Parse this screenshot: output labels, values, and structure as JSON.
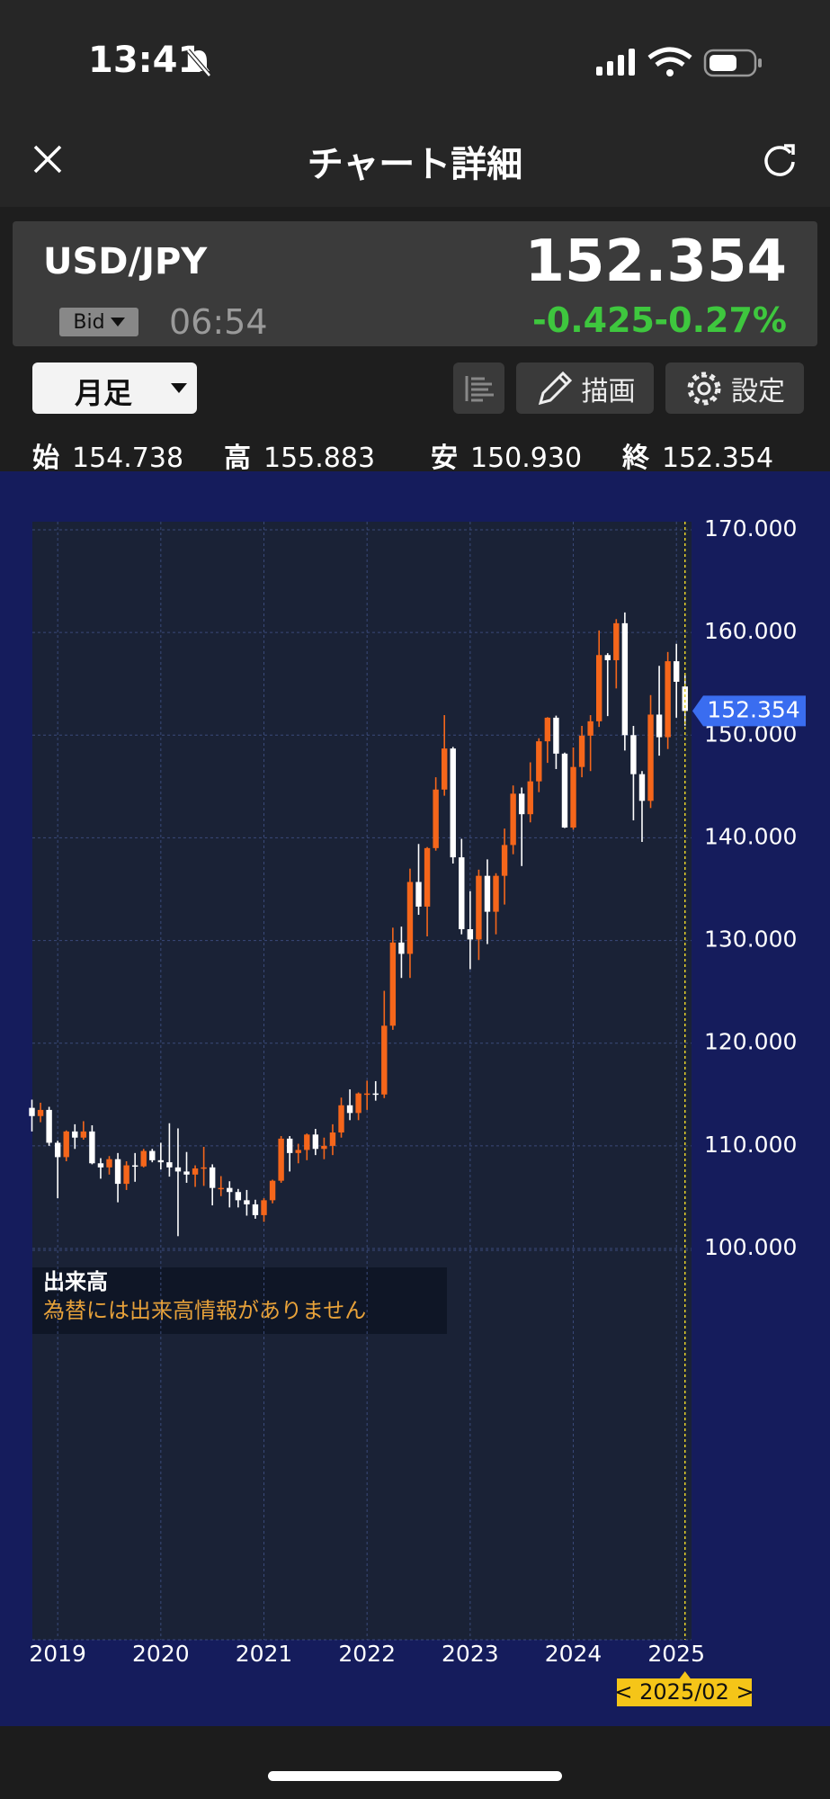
{
  "status_bar": {
    "time": "13:41"
  },
  "header": {
    "title": "チャート詳細"
  },
  "quote": {
    "symbol": "USD/JPY",
    "price": "152.354",
    "side": "Bid",
    "time": "06:54",
    "change": "-0.425",
    "change_pct": "-0.27%"
  },
  "toolbar": {
    "interval": "月足",
    "draw": "描画",
    "settings": "設定"
  },
  "ohlc": [
    {
      "label": "始",
      "value": "154.738"
    },
    {
      "label": "高",
      "value": "155.883"
    },
    {
      "label": "安",
      "value": "150.930"
    },
    {
      "label": "終",
      "value": "152.354"
    }
  ],
  "chart_data": {
    "type": "candlestick",
    "categories": [
      null,
      null,
      null,
      "2019",
      null,
      null,
      null,
      null,
      null,
      null,
      null,
      null,
      null,
      null,
      null,
      "2020",
      null,
      null,
      null,
      null,
      null,
      null,
      null,
      null,
      null,
      null,
      null,
      "2021",
      null,
      null,
      null,
      null,
      null,
      null,
      null,
      null,
      null,
      null,
      null,
      "2022",
      null,
      null,
      null,
      null,
      null,
      null,
      null,
      null,
      null,
      null,
      null,
      "2023",
      null,
      null,
      null,
      null,
      null,
      null,
      null,
      null,
      null,
      null,
      null,
      "2024",
      null,
      null,
      null,
      null,
      null,
      null,
      null,
      null,
      null,
      null,
      null,
      "2025",
      null
    ],
    "open": [
      113.7,
      112.9,
      113.5,
      110.3,
      108.9,
      111.4,
      110.8,
      111.4,
      108.3,
      107.9,
      108.7,
      106.3,
      108.1,
      108.0,
      109.5,
      108.6,
      108.4,
      107.9,
      107.5,
      107.2,
      107.8,
      107.9,
      105.9,
      105.9,
      105.5,
      104.7,
      104.3,
      103.25,
      104.7,
      106.6,
      110.7,
      109.3,
      109.6,
      111.1,
      109.7,
      110.0,
      111.3,
      113.95,
      113.2,
      115.1,
      115.1,
      115.0,
      121.7,
      129.8,
      128.7,
      135.7,
      133.3,
      139.0,
      144.7,
      148.7,
      138.1,
      131.1,
      130.1,
      136.3,
      132.8,
      136.3,
      139.3,
      144.3,
      142.3,
      145.5,
      149.4,
      151.7,
      148.2,
      141.0,
      146.9,
      149.95,
      151.35,
      157.8,
      157.3,
      160.9,
      150.0,
      146.2,
      143.6,
      152.0,
      149.8,
      157.2,
      154.738
    ],
    "high": [
      114.5,
      114.2,
      113.8,
      110.5,
      111.5,
      112.1,
      112.4,
      112.0,
      108.8,
      109.0,
      109.3,
      108.5,
      109.3,
      109.7,
      109.7,
      110.3,
      112.2,
      111.7,
      109.4,
      108.1,
      109.9,
      108.2,
      107.05,
      106.55,
      105.8,
      105.7,
      104.75,
      104.9,
      106.7,
      110.95,
      110.95,
      110.2,
      111.2,
      111.65,
      110.8,
      112.1,
      114.7,
      115.5,
      115.2,
      116.35,
      116.3,
      125.1,
      131.25,
      131.35,
      137.0,
      139.4,
      139.1,
      145.9,
      151.95,
      148.85,
      139.9,
      134.8,
      136.9,
      137.9,
      136.55,
      140.9,
      145.1,
      144.9,
      147.35,
      149.7,
      151.75,
      151.9,
      148.3,
      148.8,
      150.9,
      151.95,
      160.2,
      157.99,
      161.3,
      161.95,
      150.9,
      146.5,
      153.9,
      156.75,
      158.1,
      158.9,
      155.883
    ],
    "low": [
      111.4,
      112.3,
      110.0,
      104.9,
      108.5,
      109.7,
      110.6,
      108.2,
      106.8,
      107.2,
      104.5,
      105.7,
      106.5,
      107.9,
      108.4,
      107.7,
      107.0,
      101.2,
      106.4,
      106.0,
      106.1,
      104.2,
      105.1,
      104.0,
      104.0,
      103.2,
      102.9,
      102.6,
      104.4,
      106.4,
      107.5,
      108.3,
      108.6,
      109.1,
      108.7,
      109.1,
      110.8,
      112.5,
      112.5,
      113.5,
      114.4,
      114.65,
      121.3,
      126.35,
      126.35,
      132.5,
      130.4,
      138.75,
      144.1,
      137.5,
      130.6,
      127.2,
      128.1,
      129.65,
      130.6,
      133.5,
      138.4,
      137.25,
      141.5,
      144.45,
      147.3,
      146.7,
      140.95,
      140.8,
      145.9,
      146.5,
      150.8,
      151.85,
      154.55,
      148.5,
      141.7,
      139.6,
      142.9,
      148.0,
      148.65,
      151.7,
      150.93
    ],
    "close": [
      112.9,
      113.5,
      110.3,
      108.9,
      111.4,
      110.8,
      111.4,
      108.3,
      107.9,
      108.7,
      106.3,
      108.1,
      108.0,
      109.5,
      108.6,
      108.4,
      107.9,
      107.5,
      107.2,
      107.8,
      107.9,
      105.9,
      105.9,
      105.5,
      104.7,
      104.3,
      103.25,
      104.7,
      106.6,
      110.7,
      109.3,
      109.6,
      111.1,
      109.7,
      110.0,
      111.3,
      113.95,
      113.2,
      115.1,
      115.1,
      115.0,
      121.7,
      129.8,
      128.7,
      135.7,
      133.3,
      139.0,
      144.7,
      148.7,
      138.1,
      131.1,
      130.1,
      136.3,
      132.8,
      136.3,
      139.3,
      144.3,
      142.3,
      145.5,
      149.4,
      151.7,
      148.2,
      141.0,
      146.9,
      149.95,
      151.35,
      157.8,
      157.3,
      160.9,
      150.0,
      146.2,
      143.6,
      152.0,
      149.8,
      157.2,
      155.2,
      152.354
    ],
    "up_color": "#f5661b",
    "down_color": "#ffffff",
    "ylim": [
      100,
      170
    ],
    "yticks": [
      {
        "value": 100,
        "label": "100.000"
      },
      {
        "value": 110,
        "label": "110.000"
      },
      {
        "value": 120,
        "label": "120.000"
      },
      {
        "value": 130,
        "label": "130.000"
      },
      {
        "value": 140,
        "label": "140.000"
      },
      {
        "value": 150,
        "label": "150.000"
      },
      {
        "value": 160,
        "label": "160.000"
      },
      {
        "value": 170,
        "label": "170.000"
      }
    ],
    "grid": true,
    "cursor_label": "< 2025/02 >",
    "volume_title": "出来高",
    "volume_note": "為替には出来高情報がありません"
  }
}
